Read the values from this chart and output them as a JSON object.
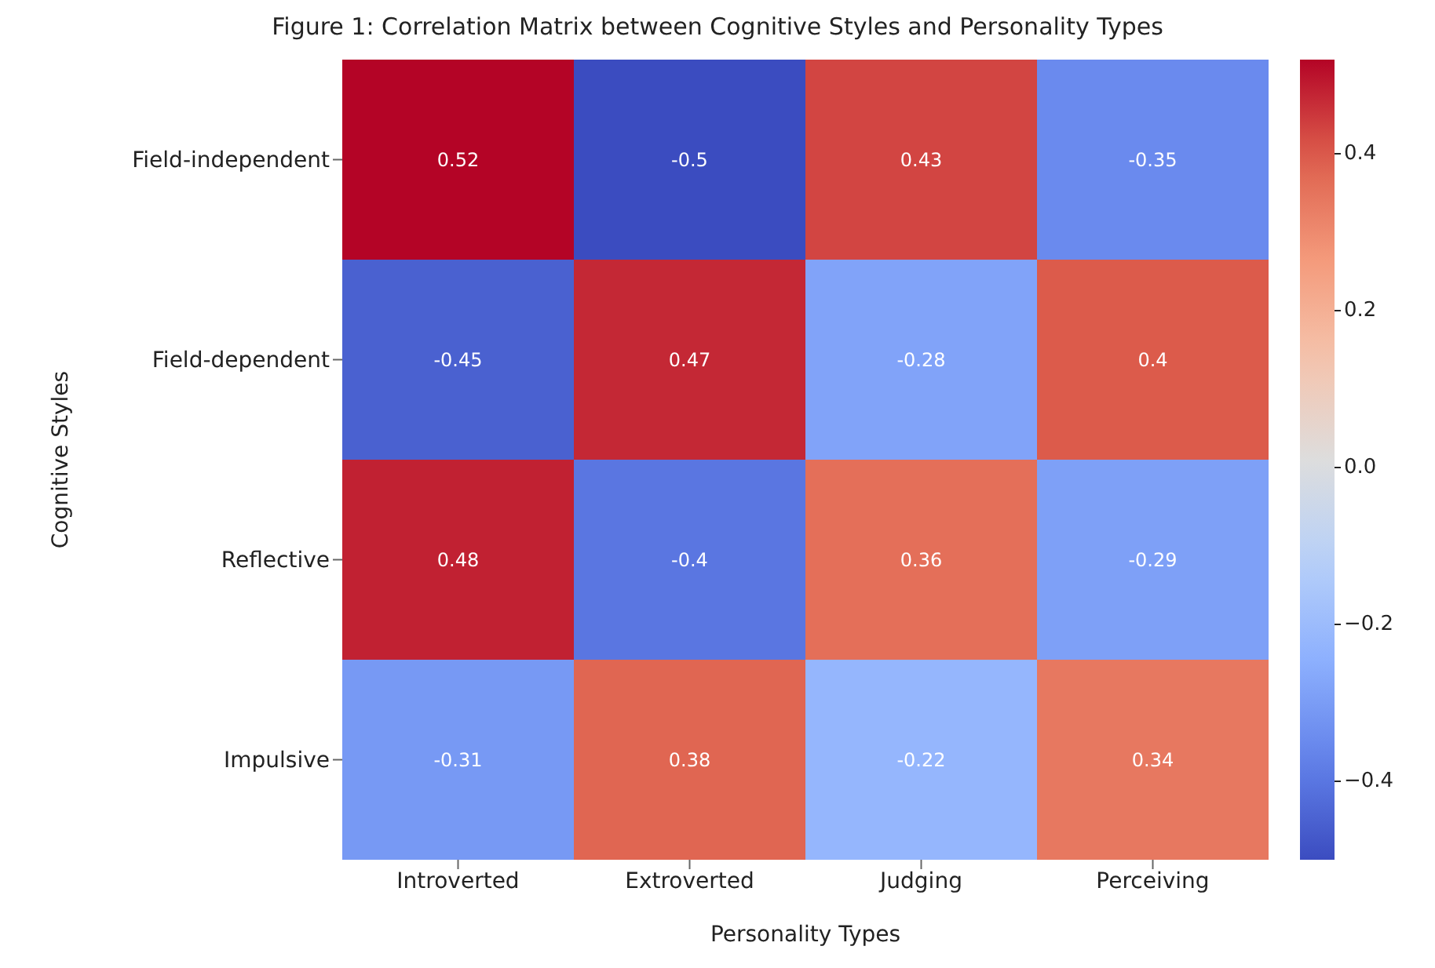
{
  "chart_data": {
    "type": "heatmap",
    "title": "Figure 1: Correlation Matrix between Cognitive Styles and Personality Types",
    "xlabel": "Personality Types",
    "ylabel": "Cognitive Styles",
    "categories": [
      "Introverted",
      "Extroverted",
      "Judging",
      "Perceiving"
    ],
    "y_categories": [
      "Field-independent",
      "Field-dependent",
      "Reflective",
      "Impulsive"
    ],
    "cells": [
      [
        0.52,
        -0.5,
        0.43,
        -0.35
      ],
      [
        -0.45,
        0.47,
        -0.28,
        0.4
      ],
      [
        0.48,
        -0.4,
        0.36,
        -0.29
      ],
      [
        -0.31,
        0.38,
        -0.22,
        0.34
      ]
    ],
    "data_labels": true,
    "clim": [
      -0.5,
      0.52
    ],
    "cticks": [
      {
        "value": -0.4,
        "label": "−0.4"
      },
      {
        "value": -0.2,
        "label": "−0.2"
      },
      {
        "value": 0,
        "label": "0.0"
      },
      {
        "value": 0.2,
        "label": "0.2"
      },
      {
        "value": 0.4,
        "label": "0.4"
      }
    ]
  }
}
